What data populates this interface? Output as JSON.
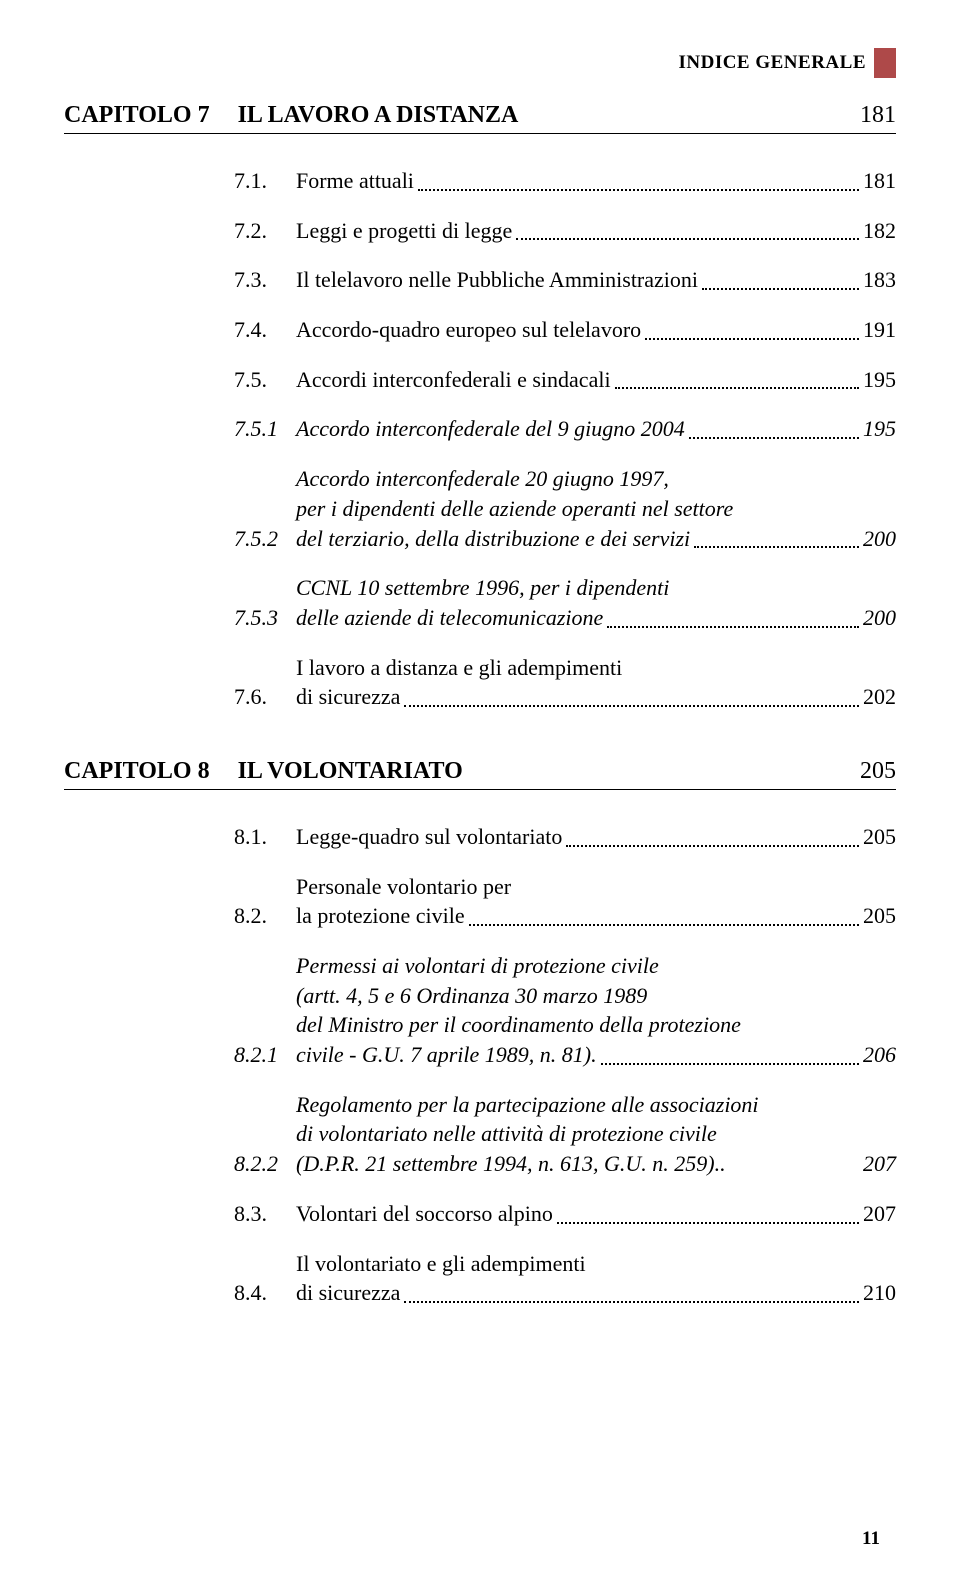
{
  "header": {
    "label": "INDICE GENERALE"
  },
  "chapters": [
    {
      "label": "CAPITOLO 7",
      "title": "IL LAVORO A DISTANZA",
      "page": "181",
      "entries": [
        {
          "num": "7.1.",
          "lines": [
            "Forme attuali"
          ],
          "page": "181",
          "italic": false
        },
        {
          "num": "7.2.",
          "lines": [
            "Leggi e progetti di legge"
          ],
          "page": "182",
          "italic": false
        },
        {
          "num": "7.3.",
          "lines": [
            "Il telelavoro nelle Pubbliche Amministrazioni"
          ],
          "page": "183",
          "italic": false
        },
        {
          "num": "7.4.",
          "lines": [
            "Accordo-quadro europeo sul telelavoro"
          ],
          "page": "191",
          "italic": false
        },
        {
          "num": "7.5.",
          "lines": [
            "Accordi interconfederali e sindacali"
          ],
          "page": "195",
          "italic": false
        },
        {
          "num": "7.5.1",
          "lines": [
            "Accordo interconfederale del 9 giugno 2004"
          ],
          "page": "195",
          "italic": true
        },
        {
          "num": "7.5.2",
          "lines": [
            "Accordo interconfederale 20 giugno 1997,",
            "per i dipendenti delle aziende operanti nel settore",
            "del terziario, della distribuzione e dei servizi"
          ],
          "page": "200",
          "italic": true
        },
        {
          "num": "7.5.3",
          "lines": [
            "CCNL 10 settembre 1996, per i dipendenti",
            "delle aziende di telecomunicazione"
          ],
          "page": "200",
          "italic": true
        },
        {
          "num": "7.6.",
          "lines": [
            "I lavoro a distanza e gli adempimenti",
            "di sicurezza"
          ],
          "page": "202",
          "italic": false
        }
      ]
    },
    {
      "label": "CAPITOLO 8",
      "title": "IL VOLONTARIATO",
      "page": "205",
      "entries": [
        {
          "num": "8.1.",
          "lines": [
            "Legge-quadro sul volontariato"
          ],
          "page": "205",
          "italic": false
        },
        {
          "num": "8.2.",
          "lines": [
            "Personale volontario per",
            "la protezione civile"
          ],
          "page": "205",
          "italic": false
        },
        {
          "num": "8.2.1",
          "lines": [
            "Permessi ai volontari di protezione civile",
            "(artt. 4, 5 e 6 Ordinanza 30 marzo 1989",
            "del Ministro per il coordinamento della protezione",
            "civile - G.U. 7 aprile 1989, n. 81)."
          ],
          "page": "206",
          "italic": true
        },
        {
          "num": "8.2.2",
          "lines": [
            "Regolamento per la partecipazione alle associazioni",
            " di volontariato nelle attività di protezione civile",
            " (D.P.R. 21 settembre 1994, n. 613, G.U. n. 259).."
          ],
          "page": "207",
          "italic": true,
          "noleader": true
        },
        {
          "num": "8.3.",
          "lines": [
            "Volontari del soccorso alpino"
          ],
          "page": "207",
          "italic": false
        },
        {
          "num": "8.4.",
          "lines": [
            "Il volontariato e gli adempimenti",
            "di sicurezza"
          ],
          "page": "210",
          "italic": false
        }
      ]
    }
  ],
  "page_number": "11",
  "colors": {
    "marker": "#ae4949",
    "text": "#000000",
    "bg": "#ffffff"
  },
  "fontsizes": {
    "header": 19,
    "chapter": 24,
    "entry": 22,
    "pagenum": 19
  }
}
